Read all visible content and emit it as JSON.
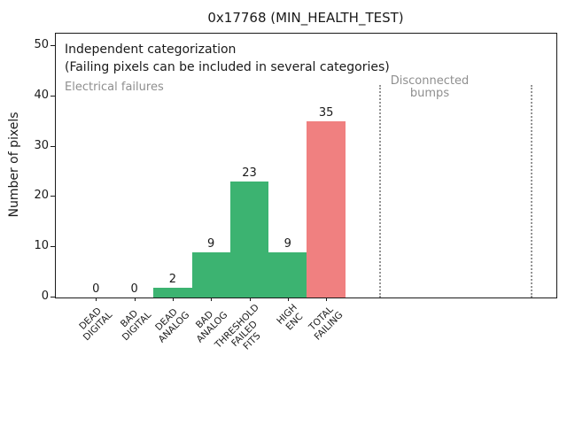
{
  "title": "0x17768 (MIN_HEALTH_TEST)",
  "ylabel": "Number of pixels",
  "annotations": {
    "line1": "Independent categorization",
    "line2": "(Failing pixels can be included in several categories)",
    "electrical_region": "Electrical failures",
    "disconnected_region": "Disconnected\nbumps"
  },
  "colors": {
    "bar_green": "#3cb371",
    "bar_red": "#f08080",
    "muted_text": "#8f8f8f",
    "separator_line": "#949494",
    "axis": "#1a1a1a"
  },
  "chart_data": {
    "type": "bar",
    "categories": [
      "DEAD\nDIGITAL",
      "BAD\nDIGITAL",
      "DEAD\nANALOG",
      "BAD\nANALOG",
      "THRESHOLD\nFAILED\nFITS",
      "HIGH\nENC",
      "TOTAL\nFAILING"
    ],
    "values": [
      0,
      0,
      2,
      9,
      23,
      9,
      35
    ],
    "value_labels": [
      "0",
      "0",
      "2",
      "9",
      "23",
      "9",
      "35"
    ],
    "bar_colors": [
      "#3cb371",
      "#3cb371",
      "#3cb371",
      "#3cb371",
      "#3cb371",
      "#3cb371",
      "#f08080"
    ],
    "title": "0x17768 (MIN_HEALTH_TEST)",
    "xlabel": "",
    "ylabel": "Number of pixels",
    "yticks": [
      0,
      10,
      20,
      30,
      40,
      50
    ],
    "ylim": [
      0,
      52.5
    ],
    "grid": false,
    "legend": null,
    "bar_width_ratio": 1.0,
    "region_groups": [
      {
        "label": "Electrical failures",
        "categories_span": [
          0,
          6
        ]
      },
      {
        "label": "Disconnected\nbumps",
        "categories_span": []
      }
    ]
  }
}
